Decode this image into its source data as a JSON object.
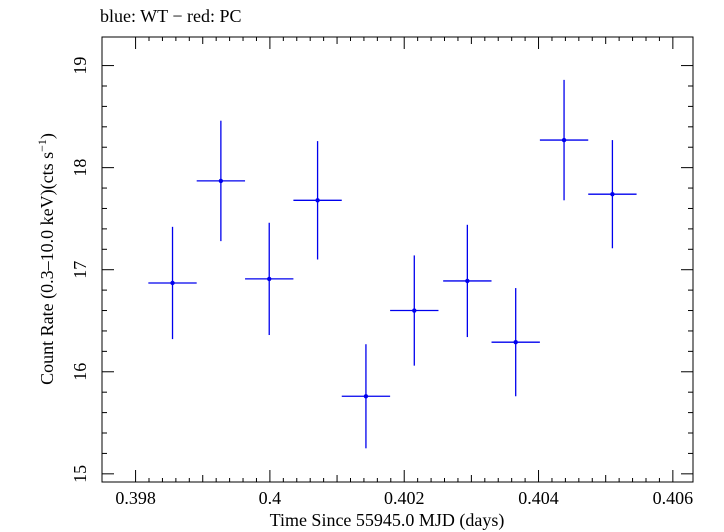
{
  "chart_data": {
    "type": "scatter",
    "title": "blue: WT − red: PC",
    "xlabel": "Time Since 55945.0 MJD (days)",
    "ylabel_main": "Count Rate (0.3–10.0 keV)(cts s",
    "ylabel_sup": "−1",
    "ylabel_close": ")",
    "xlim": [
      0.3975,
      0.4063
    ],
    "ylim": [
      14.92,
      19.28
    ],
    "x_ticks": [
      0.398,
      0.399,
      0.4,
      0.401,
      0.402,
      0.403,
      0.404,
      0.405,
      0.406
    ],
    "x_tick_labels": [
      "0.398",
      "",
      "0.4",
      "",
      "0.402",
      "",
      "0.404",
      "",
      "0.406"
    ],
    "y_ticks": [
      15,
      16,
      17,
      18,
      19
    ],
    "y_tick_labels": [
      "15",
      "16",
      "17",
      "18",
      "19"
    ],
    "color": "#0000ee",
    "grid": false,
    "series": [
      {
        "points": [
          {
            "x": 0.39855,
            "xerr": 0.00036,
            "y": 16.87,
            "yerr": 0.55
          },
          {
            "x": 0.39927,
            "xerr": 0.00036,
            "y": 17.87,
            "yerr": 0.59
          },
          {
            "x": 0.39999,
            "xerr": 0.00036,
            "y": 16.91,
            "yerr": 0.55
          },
          {
            "x": 0.40071,
            "xerr": 0.00036,
            "y": 17.68,
            "yerr": 0.58
          },
          {
            "x": 0.40143,
            "xerr": 0.00036,
            "y": 15.76,
            "yerr": 0.51
          },
          {
            "x": 0.40215,
            "xerr": 0.00036,
            "y": 16.6,
            "yerr": 0.54
          },
          {
            "x": 0.40294,
            "xerr": 0.00036,
            "y": 16.89,
            "yerr": 0.55
          },
          {
            "x": 0.40366,
            "xerr": 0.00036,
            "y": 16.29,
            "yerr": 0.53
          },
          {
            "x": 0.40438,
            "xerr": 0.00036,
            "y": 18.27,
            "yerr": 0.59
          },
          {
            "x": 0.4051,
            "xerr": 0.00036,
            "y": 17.74,
            "yerr": 0.53
          }
        ]
      }
    ]
  }
}
